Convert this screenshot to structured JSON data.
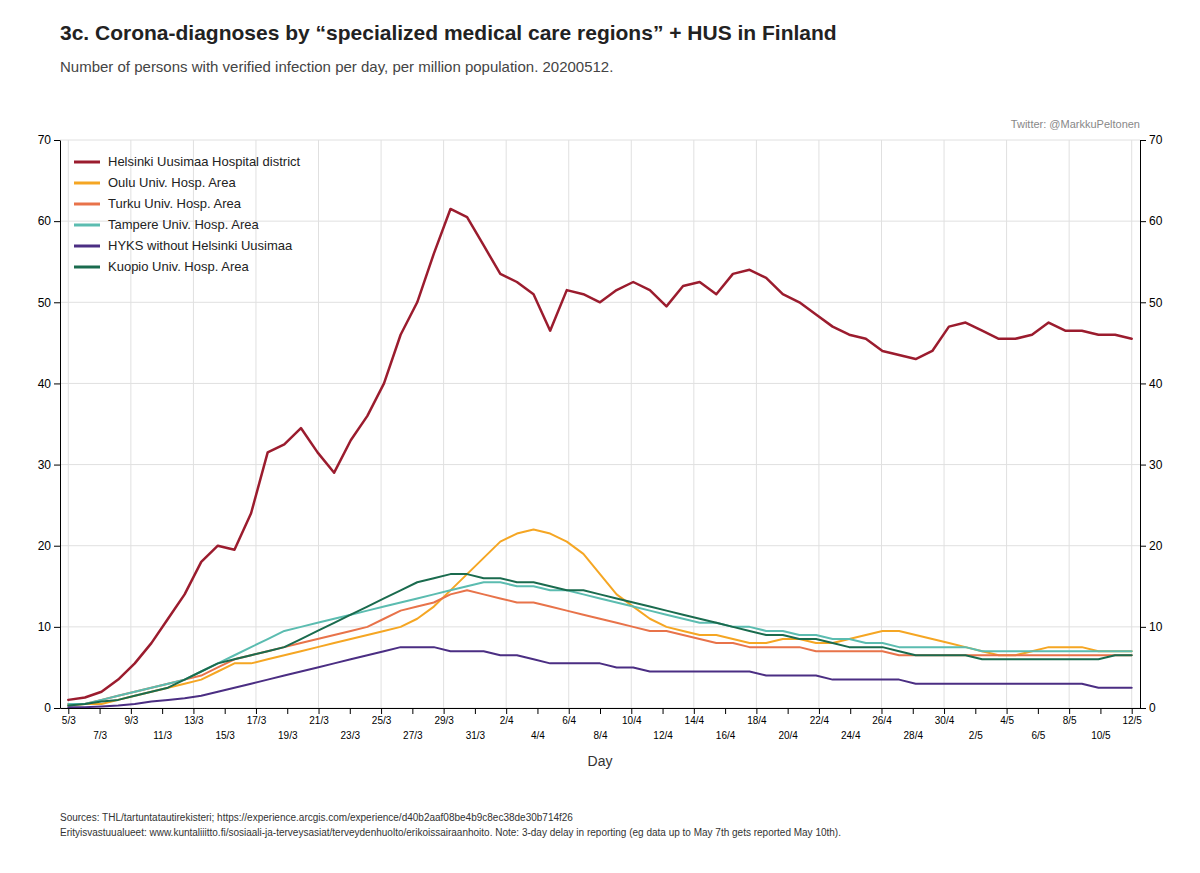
{
  "chart_data": {
    "type": "line",
    "title": "3c. Corona-diagnoses by “specialized medical care regions” + HUS in Finland",
    "subtitle": "Number of persons with verified infection per day, per million population. 20200512.",
    "annotations": [
      "Twitter: @MarkkuPeltonen",
      "Sources: THL/tartuntatautirekisteri; https://experience.arcgis.com/experience/d40b2aaf08be4b9c8ec38de30b714f26\nErityisvastuualueet: www.kuntaliiitto.fi/sosiaali-ja-terveysasiat/terveydenhuolto/erikoissairaanhoito. Note: 3-day delay in reporting (eg data up to May 7th gets reported May 10th)."
    ],
    "xlabel": "Day",
    "x": [
      0,
      1,
      2,
      3,
      4,
      5,
      6,
      7,
      8,
      9,
      10,
      11,
      12,
      13,
      14,
      15,
      16,
      17,
      18,
      19,
      20,
      21,
      22,
      23,
      24,
      25,
      26,
      27,
      28,
      29,
      30,
      31,
      32,
      33,
      34,
      35,
      36,
      37,
      38,
      39,
      40,
      41,
      42,
      43,
      44,
      45,
      46,
      47,
      48,
      49,
      50,
      51,
      52,
      53,
      54,
      55,
      56,
      57,
      58,
      59,
      60,
      61,
      62,
      63,
      64
    ],
    "xlim": [
      -0.5,
      64.5
    ],
    "xticks": [
      {
        "value": 0,
        "label": "5/3"
      },
      {
        "value": 1.8823529411764706,
        "label": "7/3"
      },
      {
        "value": 3.764705882352941,
        "label": "9/3"
      },
      {
        "value": 5.647058823529412,
        "label": "11/3"
      },
      {
        "value": 7.529411764705882,
        "label": "13/3"
      },
      {
        "value": 9.411764705882353,
        "label": "15/3"
      },
      {
        "value": 11.294117647058824,
        "label": "17/3"
      },
      {
        "value": 13.176470588235293,
        "label": "19/3"
      },
      {
        "value": 15.058823529411764,
        "label": "21/3"
      },
      {
        "value": 16.941176470588236,
        "label": "23/3"
      },
      {
        "value": 18.823529411764707,
        "label": "25/3"
      },
      {
        "value": 20.705882352941178,
        "label": "27/3"
      },
      {
        "value": 22.58823529411765,
        "label": "29/3"
      },
      {
        "value": 24.470588235294116,
        "label": "31/3"
      },
      {
        "value": 26.352941176470587,
        "label": "2/4"
      },
      {
        "value": 28.235294117647058,
        "label": "4/4"
      },
      {
        "value": 30.11764705882353,
        "label": "6/4"
      },
      {
        "value": 32,
        "label": "8/4"
      },
      {
        "value": 33.88235294117647,
        "label": "10/4"
      },
      {
        "value": 35.76470588235294,
        "label": "12/4"
      },
      {
        "value": 37.64705882352941,
        "label": "14/4"
      },
      {
        "value": 39.529411764705884,
        "label": "16/4"
      },
      {
        "value": 41.411764705882355,
        "label": "18/4"
      },
      {
        "value": 43.294117647058826,
        "label": "20/4"
      },
      {
        "value": 45.1764705882353,
        "label": "22/4"
      },
      {
        "value": 47.05882352941177,
        "label": "24/4"
      },
      {
        "value": 48.94117647058823,
        "label": "26/4"
      },
      {
        "value": 50.8235294117647,
        "label": "28/4"
      },
      {
        "value": 52.705882352941174,
        "label": "30/4"
      },
      {
        "value": 54.588235294117645,
        "label": "2/5"
      },
      {
        "value": 56.470588235294116,
        "label": "4/5"
      },
      {
        "value": 58.35294117647059,
        "label": "6/5"
      },
      {
        "value": 60.23529411764706,
        "label": "8/5"
      },
      {
        "value": 62.11764705882353,
        "label": "10/5"
      },
      {
        "value": 64,
        "label": "12/5"
      }
    ],
    "ylim": [
      0,
      70
    ],
    "yticks": [
      0,
      10,
      20,
      30,
      40,
      50,
      60,
      70
    ],
    "y2lim": [
      0,
      70
    ],
    "y2ticks": [
      0,
      10,
      20,
      30,
      40,
      50,
      60,
      70
    ],
    "grid": true,
    "legend": "upper left",
    "series": [
      {
        "name": "Helsinki Uusimaa Hospital district",
        "color": "#9b1c2e",
        "values": [
          1.0,
          1.3,
          2.0,
          3.5,
          5.5,
          8.0,
          11.0,
          14.0,
          18.0,
          20.0,
          19.5,
          24.0,
          31.5,
          32.5,
          34.5,
          31.5,
          29.0,
          33.0,
          36.0,
          40.0,
          46.0,
          50.0,
          56.0,
          61.5,
          60.5,
          57.0,
          53.5,
          52.5,
          51.0,
          46.5,
          51.5,
          51.0,
          50.0,
          51.5,
          52.5,
          51.5,
          49.5,
          52.0,
          52.5,
          51.0,
          53.5,
          54.0,
          53.0,
          51.0,
          50.0,
          48.5,
          47.0,
          46.0,
          45.5,
          44.0,
          43.5,
          43.0,
          44.0,
          47.0,
          47.5,
          46.5,
          45.5,
          45.5,
          46.0,
          47.5,
          46.5,
          46.5,
          46.0,
          46.0,
          45.5
        ]
      },
      {
        "name": "Oulu Univ. Hosp. Area",
        "color": "#f5a623",
        "values": [
          0.3,
          0.5,
          0.5,
          1.0,
          1.5,
          2.0,
          2.5,
          3.0,
          3.5,
          4.5,
          5.5,
          5.5,
          6.0,
          6.5,
          7.0,
          7.5,
          8.0,
          8.5,
          9.0,
          9.5,
          10.0,
          11.0,
          12.5,
          14.5,
          16.5,
          18.5,
          20.5,
          21.5,
          22.0,
          21.5,
          20.5,
          19.0,
          16.5,
          14.0,
          12.5,
          11.0,
          10.0,
          9.5,
          9.0,
          9.0,
          8.5,
          8.0,
          8.0,
          8.5,
          8.5,
          8.0,
          8.0,
          8.5,
          9.0,
          9.5,
          9.5,
          9.0,
          8.5,
          8.0,
          7.5,
          7.0,
          6.5,
          6.5,
          7.0,
          7.5,
          7.5,
          7.5,
          7.0,
          7.0,
          7.0
        ]
      },
      {
        "name": "Turku Univ. Hosp. Area",
        "color": "#e8734a",
        "values": [
          0.5,
          0.5,
          1.0,
          1.5,
          2.0,
          2.5,
          3.0,
          3.5,
          4.0,
          5.0,
          6.0,
          6.5,
          7.0,
          7.5,
          8.0,
          8.5,
          9.0,
          9.5,
          10.0,
          11.0,
          12.0,
          12.5,
          13.0,
          14.0,
          14.5,
          14.0,
          13.5,
          13.0,
          13.0,
          12.5,
          12.0,
          11.5,
          11.0,
          10.5,
          10.0,
          9.5,
          9.5,
          9.0,
          8.5,
          8.0,
          8.0,
          7.5,
          7.5,
          7.5,
          7.5,
          7.0,
          7.0,
          7.0,
          7.0,
          7.0,
          6.5,
          6.5,
          6.5,
          6.5,
          6.5,
          6.5,
          6.5,
          6.5,
          6.5,
          6.5,
          6.5,
          6.5,
          6.5,
          6.5,
          6.5
        ]
      },
      {
        "name": "Tampere Univ. Hosp. Area",
        "color": "#5bbcb0",
        "values": [
          0.5,
          0.5,
          1.0,
          1.5,
          2.0,
          2.5,
          3.0,
          3.5,
          4.5,
          5.5,
          6.5,
          7.5,
          8.5,
          9.5,
          10.0,
          10.5,
          11.0,
          11.5,
          12.0,
          12.5,
          13.0,
          13.5,
          14.0,
          14.5,
          15.0,
          15.5,
          15.5,
          15.0,
          15.0,
          14.5,
          14.5,
          14.0,
          13.5,
          13.0,
          12.5,
          12.0,
          11.5,
          11.0,
          10.5,
          10.5,
          10.0,
          10.0,
          9.5,
          9.5,
          9.0,
          9.0,
          8.5,
          8.5,
          8.0,
          8.0,
          7.5,
          7.5,
          7.5,
          7.5,
          7.5,
          7.0,
          7.0,
          7.0,
          7.0,
          7.0,
          7.0,
          7.0,
          7.0,
          7.0,
          7.0
        ]
      },
      {
        "name": "HYKS without Helsinki Uusimaa",
        "color": "#4b2e83",
        "values": [
          0.1,
          0.1,
          0.2,
          0.3,
          0.5,
          0.8,
          1.0,
          1.2,
          1.5,
          2.0,
          2.5,
          3.0,
          3.5,
          4.0,
          4.5,
          5.0,
          5.5,
          6.0,
          6.5,
          7.0,
          7.5,
          7.5,
          7.5,
          7.0,
          7.0,
          7.0,
          6.5,
          6.5,
          6.0,
          5.5,
          5.5,
          5.5,
          5.5,
          5.0,
          5.0,
          4.5,
          4.5,
          4.5,
          4.5,
          4.5,
          4.5,
          4.5,
          4.0,
          4.0,
          4.0,
          4.0,
          3.5,
          3.5,
          3.5,
          3.5,
          3.5,
          3.0,
          3.0,
          3.0,
          3.0,
          3.0,
          3.0,
          3.0,
          3.0,
          3.0,
          3.0,
          3.0,
          2.5,
          2.5,
          2.5
        ]
      },
      {
        "name": "Kuopio Univ. Hosp. Area",
        "color": "#1a6b4e",
        "values": [
          0.3,
          0.5,
          0.8,
          1.0,
          1.5,
          2.0,
          2.5,
          3.5,
          4.5,
          5.5,
          6.0,
          6.5,
          7.0,
          7.5,
          8.5,
          9.5,
          10.5,
          11.5,
          12.5,
          13.5,
          14.5,
          15.5,
          16.0,
          16.5,
          16.5,
          16.0,
          16.0,
          15.5,
          15.5,
          15.0,
          14.5,
          14.5,
          14.0,
          13.5,
          13.0,
          12.5,
          12.0,
          11.5,
          11.0,
          10.5,
          10.0,
          9.5,
          9.0,
          9.0,
          8.5,
          8.5,
          8.0,
          7.5,
          7.5,
          7.5,
          7.0,
          6.5,
          6.5,
          6.5,
          6.5,
          6.0,
          6.0,
          6.0,
          6.0,
          6.0,
          6.0,
          6.0,
          6.0,
          6.5,
          6.5
        ]
      }
    ]
  }
}
